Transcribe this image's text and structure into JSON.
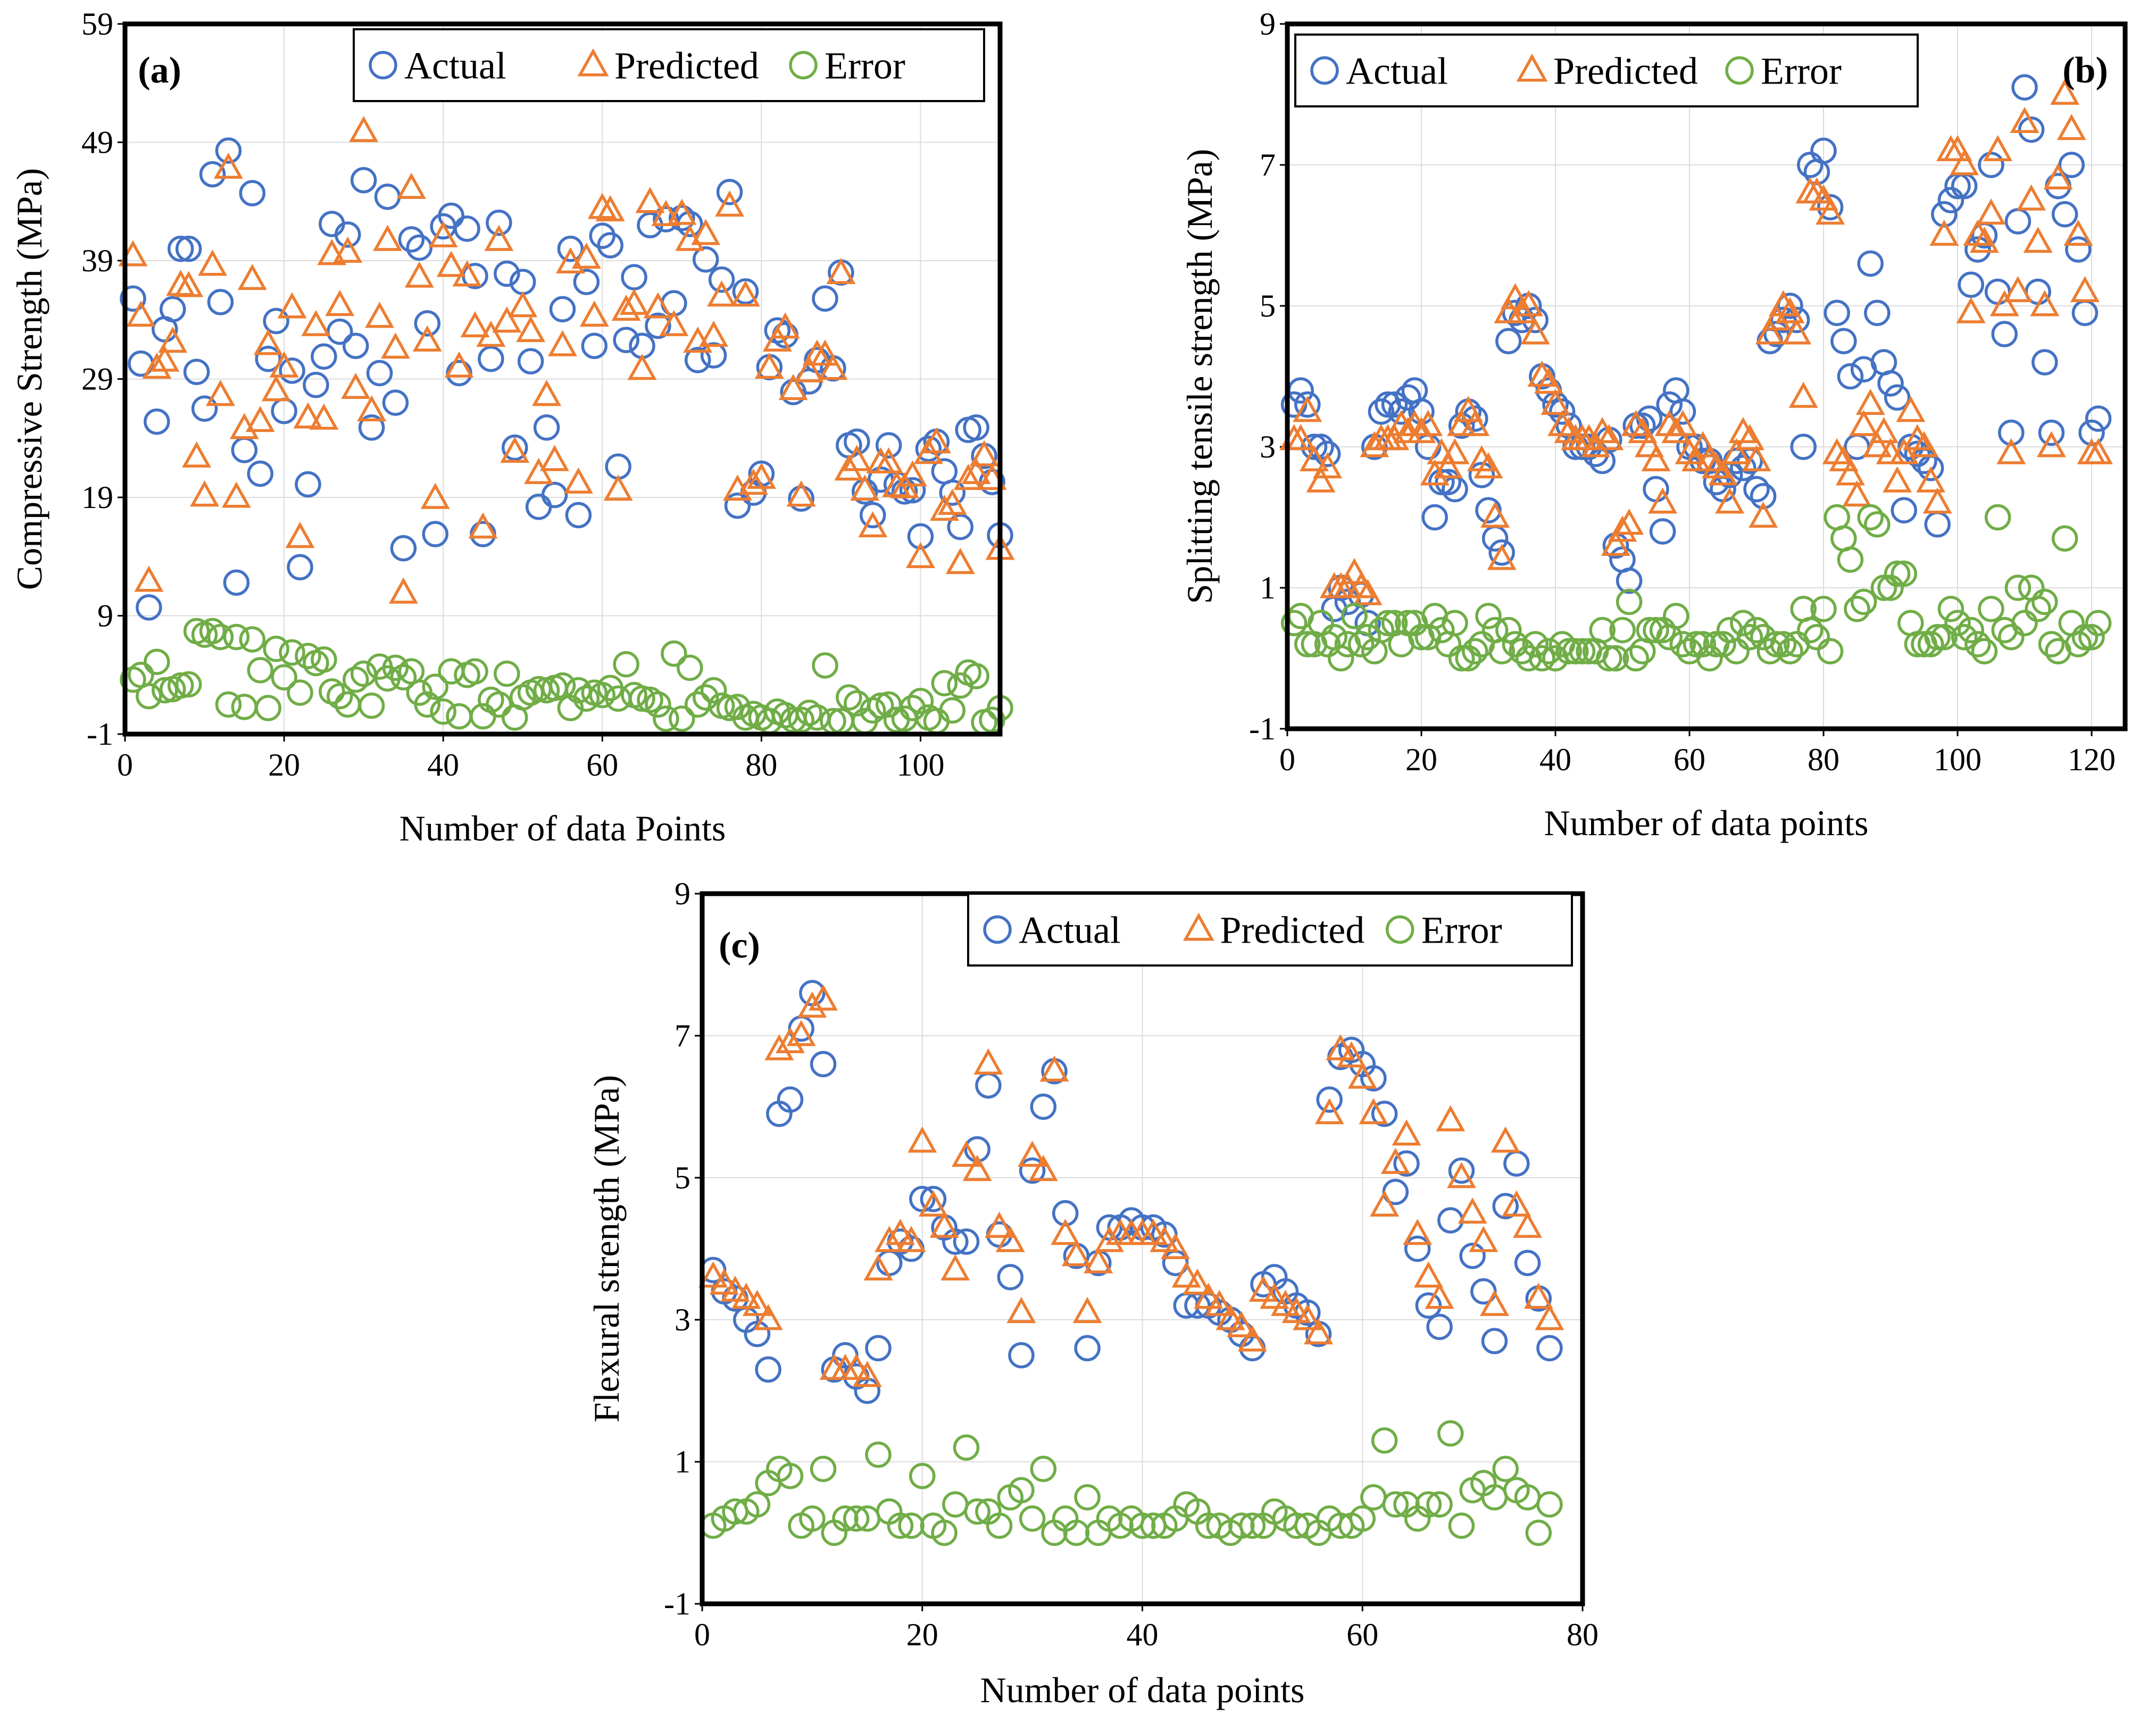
{
  "chart_data": [
    {
      "type": "scatter",
      "panel_label": "a",
      "xlabel": "Number of data Points",
      "ylabel": "Compressive Strength (MPa)",
      "xlim": [
        0,
        110
      ],
      "ylim": [
        -1,
        59
      ],
      "xticks": [
        0,
        20,
        40,
        60,
        80,
        100
      ],
      "yticks": [
        -1,
        9,
        19,
        29,
        39,
        49,
        59
      ],
      "grid": true,
      "legend_position": "top-right",
      "colors": {
        "Actual": "#4472C4",
        "Predicted": "#ED7D31",
        "Error": "#70AD47"
      },
      "series": [
        {
          "name": "Actual",
          "marker": "circle",
          "values": [
            35.8,
            30.3,
            9.7,
            25.4,
            33.2,
            34.9,
            40.0,
            40.0,
            29.6,
            26.5,
            46.3,
            35.5,
            48.3,
            11.8,
            23.0,
            44.7,
            21.0,
            30.7,
            33.9,
            26.3,
            29.7,
            13.1,
            20.1,
            28.5,
            30.9,
            42.1,
            33.0,
            41.2,
            31.8,
            45.8,
            24.9,
            29.5,
            44.4,
            27.0,
            14.7,
            40.8,
            40.1,
            33.7,
            15.9,
            41.9,
            42.8,
            29.5,
            41.7,
            37.7,
            15.9,
            30.7,
            42.2,
            37.9,
            23.2,
            37.2,
            30.5,
            18.2,
            24.9,
            19.2,
            34.9,
            40.0,
            17.5,
            37.2,
            31.8,
            41.1,
            40.3,
            21.6,
            32.3,
            37.6,
            31.8,
            42.0,
            33.5,
            42.5,
            35.4,
            42.6,
            42.1,
            30.6,
            39.1,
            31.0,
            37.4,
            44.8,
            18.3,
            36.4,
            19.4,
            21.0,
            30.0,
            33.1,
            32.7,
            27.9,
            18.9,
            28.8,
            30.6,
            35.8,
            29.9,
            38.0,
            23.4,
            23.7,
            19.5,
            17.5,
            20.5,
            23.4,
            20.1,
            19.5,
            19.6,
            15.7,
            23.1,
            23.7,
            21.2,
            19.4,
            16.5,
            24.7,
            24.9,
            22.5,
            20.3,
            15.8
          ]
        },
        {
          "name": "Predicted",
          "marker": "triangle",
          "values": [
            39.4,
            34.3,
            11.9,
            29.9,
            30.5,
            32.1,
            36.9,
            36.8,
            22.4,
            19.1,
            38.6,
            27.6,
            46.8,
            19.0,
            24.8,
            37.4,
            25.4,
            31.9,
            28.0,
            30.0,
            35.0,
            15.6,
            25.7,
            33.5,
            25.6,
            39.5,
            35.2,
            39.7,
            28.2,
            49.9,
            26.3,
            34.2,
            40.7,
            31.6,
            10.9,
            45.1,
            37.6,
            32.2,
            18.9,
            41.0,
            38.5,
            30.0,
            37.7,
            33.4,
            16.4,
            32.6,
            40.7,
            33.8,
            22.8,
            35.1,
            33.0,
            21.0,
            27.6,
            22.1,
            31.8,
            38.8,
            20.2,
            39.2,
            34.3,
            43.4,
            43.2,
            19.6,
            34.8,
            35.3,
            29.8,
            43.9,
            35.0,
            42.8,
            33.5,
            42.9,
            40.7,
            32.1,
            41.2,
            32.6,
            36.0,
            43.6,
            19.6,
            36.0,
            20.1,
            20.6,
            29.9,
            32.2,
            33.3,
            28.1,
            19.1,
            29.6,
            31.0,
            31.0,
            29.8,
            37.9,
            21.3,
            22.1,
            19.6,
            16.5,
            21.9,
            21.9,
            19.9,
            19.8,
            20.8,
            13.9,
            22.7,
            23.6,
            17.9,
            18.4,
            13.4,
            20.5,
            21.0,
            22.5,
            20.5,
            14.6
          ]
        },
        {
          "name": "Error",
          "marker": "circle",
          "values": [
            3.6,
            4.0,
            2.2,
            5.1,
            2.7,
            2.8,
            3.1,
            3.2,
            7.7,
            7.4,
            7.7,
            7.2,
            1.5,
            7.2,
            1.3,
            7.0,
            4.4,
            1.2,
            6.2,
            3.8,
            5.9,
            2.5,
            5.6,
            5.0,
            5.3,
            2.6,
            2.2,
            1.5,
            3.6,
            4.1,
            1.4,
            4.7,
            3.7,
            4.6,
            3.8,
            4.3,
            2.5,
            1.5,
            3.0,
            0.9,
            4.3,
            0.5,
            4.0,
            4.3,
            0.5,
            1.9,
            1.5,
            4.1,
            0.4,
            2.1,
            2.5,
            2.8,
            2.7,
            2.9,
            3.1,
            1.2,
            2.7,
            2.0,
            2.5,
            2.3,
            2.9,
            2.0,
            4.9,
            2.3,
            2.0,
            1.9,
            1.5,
            0.3,
            5.8,
            0.3,
            4.6,
            1.5,
            2.1,
            2.7,
            1.4,
            1.2,
            1.3,
            0.4,
            0.7,
            0.4,
            0.1,
            0.9,
            0.6,
            0.2,
            0.2,
            0.8,
            0.4,
            4.8,
            0.1,
            0.1,
            2.1,
            1.6,
            0.1,
            1.0,
            1.4,
            1.5,
            0.2,
            0.3,
            1.2,
            1.8,
            0.4,
            0.1,
            3.3,
            1.0,
            3.1,
            4.2,
            3.9,
            0.0,
            0.2,
            1.2
          ]
        }
      ],
      "legend": [
        "Actual",
        "Predicted",
        "Error"
      ]
    },
    {
      "type": "scatter",
      "panel_label": "b",
      "xlabel": "Number of data points",
      "ylabel": "Splitting tensile strength (MPa)",
      "xlim": [
        0,
        125
      ],
      "ylim": [
        -1,
        9
      ],
      "xticks": [
        0,
        20,
        40,
        60,
        80,
        100,
        120
      ],
      "yticks": [
        -1,
        1,
        3,
        5,
        7,
        9
      ],
      "grid": true,
      "legend_position": "top-left",
      "colors": {
        "Actual": "#4472C4",
        "Predicted": "#ED7D31",
        "Error": "#70AD47"
      },
      "series": [
        {
          "name": "Actual",
          "marker": "circle",
          "values": [
            3.6,
            3.8,
            3.6,
            3.0,
            3.0,
            2.9,
            0.7,
            1.0,
            0.8,
            0.6,
            0.9,
            0.5,
            3.0,
            3.5,
            3.6,
            3.6,
            3.5,
            3.7,
            3.8,
            3.5,
            3.0,
            2.0,
            2.5,
            2.5,
            2.4,
            3.3,
            3.5,
            3.4,
            2.6,
            2.1,
            1.7,
            1.5,
            4.5,
            4.9,
            4.8,
            5.0,
            4.8,
            4.0,
            3.8,
            3.6,
            3.5,
            3.3,
            3.0,
            3.0,
            3.0,
            2.9,
            2.8,
            3.1,
            1.6,
            1.4,
            1.1,
            3.3,
            3.3,
            3.4,
            2.4,
            1.8,
            3.6,
            3.8,
            3.5,
            3.0,
            3.0,
            2.8,
            2.8,
            2.5,
            2.4,
            2.6,
            2.8,
            2.7,
            2.8,
            2.4,
            2.3,
            4.5,
            4.6,
            4.8,
            5.0,
            4.8,
            3.0,
            7.0,
            6.9,
            7.2,
            6.4,
            4.9,
            4.5,
            4.0,
            3.0,
            4.1,
            5.6,
            4.9,
            4.2,
            3.9,
            3.7,
            2.1,
            3.0,
            2.9,
            2.8,
            2.7,
            1.9,
            6.3,
            6.5,
            6.7,
            6.7,
            5.3,
            5.8,
            6.0,
            7.0,
            5.2,
            4.6,
            3.2,
            6.2,
            8.1,
            7.5,
            5.2,
            4.2,
            3.2,
            6.7,
            6.3,
            7.0,
            5.8,
            4.9,
            3.2,
            3.4
          ]
        },
        {
          "name": "Predicted",
          "marker": "triangle",
          "values": [
            3.1,
            3.1,
            3.5,
            2.8,
            2.5,
            2.7,
            1.0,
            1.0,
            1.0,
            1.2,
            1.0,
            0.9,
            3.0,
            3.1,
            3.1,
            3.1,
            3.3,
            3.2,
            3.3,
            3.2,
            3.3,
            2.6,
            2.9,
            2.7,
            2.9,
            3.3,
            3.5,
            3.3,
            2.8,
            2.7,
            2.0,
            1.4,
            4.9,
            5.1,
            4.9,
            5.0,
            4.6,
            4.0,
            3.9,
            3.6,
            3.3,
            3.2,
            3.1,
            3.1,
            3.1,
            3.0,
            3.2,
            3.1,
            1.6,
            1.8,
            1.9,
            3.3,
            3.2,
            3.0,
            2.8,
            2.2,
            3.3,
            3.2,
            3.3,
            2.9,
            2.8,
            3.0,
            2.8,
            2.7,
            2.6,
            2.2,
            2.9,
            3.2,
            3.1,
            2.8,
            2.0,
            4.6,
            4.8,
            5.0,
            4.9,
            4.6,
            3.7,
            6.6,
            6.6,
            6.5,
            6.3,
            2.9,
            2.8,
            2.6,
            2.3,
            3.3,
            3.6,
            3.0,
            3.2,
            2.9,
            2.5,
            2.9,
            3.5,
            3.1,
            3.0,
            2.5,
            2.2,
            6.0,
            7.2,
            7.2,
            7.0,
            4.9,
            6.0,
            5.9,
            6.3,
            7.2,
            5.0,
            2.9,
            5.2,
            7.6,
            6.5,
            5.9,
            5.0,
            3.0,
            6.8,
            8.0,
            7.5,
            6.0,
            5.2,
            2.9,
            2.9
          ]
        },
        {
          "name": "Error",
          "marker": "circle",
          "values": [
            0.5,
            0.6,
            0.2,
            0.2,
            0.5,
            0.2,
            0.3,
            0.0,
            0.2,
            0.6,
            0.2,
            0.3,
            0.1,
            0.4,
            0.5,
            0.5,
            0.2,
            0.5,
            0.5,
            0.3,
            0.3,
            0.6,
            0.4,
            0.2,
            0.5,
            0.0,
            0.0,
            0.1,
            0.2,
            0.6,
            0.4,
            0.1,
            0.4,
            0.2,
            0.1,
            0.0,
            0.2,
            0.0,
            0.1,
            0.0,
            0.2,
            0.1,
            0.1,
            0.1,
            0.1,
            0.1,
            0.4,
            0.0,
            0.0,
            0.4,
            0.8,
            0.0,
            0.1,
            0.4,
            0.4,
            0.4,
            0.3,
            0.6,
            0.2,
            0.1,
            0.2,
            0.2,
            0.0,
            0.2,
            0.2,
            0.4,
            0.1,
            0.5,
            0.3,
            0.4,
            0.3,
            0.1,
            0.2,
            0.2,
            0.1,
            0.2,
            0.7,
            0.4,
            0.3,
            0.7,
            0.1,
            2.0,
            1.7,
            1.4,
            0.7,
            0.8,
            2.0,
            1.9,
            1.0,
            1.0,
            1.2,
            1.2,
            0.5,
            0.2,
            0.2,
            0.2,
            0.3,
            0.3,
            0.7,
            0.5,
            0.3,
            0.4,
            0.2,
            0.1,
            0.7,
            2.0,
            0.4,
            0.3,
            1.0,
            0.5,
            1.0,
            0.7,
            0.8,
            0.2,
            0.1,
            1.7,
            0.5,
            0.2,
            0.3,
            0.3,
            0.5
          ]
        }
      ],
      "legend": [
        "Actual",
        "Predicted",
        "Error"
      ]
    },
    {
      "type": "scatter",
      "panel_label": "c",
      "xlabel": "Number of data points",
      "ylabel": "Flexural strength (MPa)",
      "xlim": [
        0,
        80
      ],
      "ylim": [
        -1,
        9
      ],
      "xticks": [
        0,
        20,
        40,
        60,
        80
      ],
      "yticks": [
        -1,
        1,
        3,
        5,
        7,
        9
      ],
      "grid": true,
      "legend_position": "top-right",
      "colors": {
        "Actual": "#4472C4",
        "Predicted": "#ED7D31",
        "Error": "#70AD47"
      },
      "series": [
        {
          "name": "Actual",
          "marker": "circle",
          "values": [
            3.7,
            3.4,
            3.3,
            3.0,
            2.8,
            2.3,
            5.9,
            6.1,
            7.1,
            7.6,
            6.6,
            2.3,
            2.5,
            2.2,
            2.0,
            2.6,
            3.8,
            4.1,
            4.0,
            4.7,
            4.7,
            4.3,
            4.1,
            4.1,
            5.4,
            6.3,
            4.2,
            3.6,
            2.5,
            5.1,
            6.0,
            6.5,
            4.5,
            3.9,
            2.6,
            3.8,
            4.3,
            4.3,
            4.4,
            4.3,
            4.3,
            4.2,
            3.8,
            3.2,
            3.2,
            3.2,
            3.1,
            3.0,
            2.8,
            2.6,
            3.5,
            3.6,
            3.4,
            3.2,
            3.1,
            2.8,
            6.1,
            6.7,
            6.8,
            6.6,
            6.4,
            5.9,
            4.8,
            5.2,
            4.0,
            3.2,
            2.9,
            4.4,
            5.1,
            3.9,
            3.4,
            2.7,
            4.6,
            5.2,
            3.8,
            3.3,
            2.6
          ]
        },
        {
          "name": "Predicted",
          "marker": "triangle",
          "values": [
            3.6,
            3.5,
            3.4,
            3.3,
            3.2,
            3.0,
            6.8,
            6.9,
            7.0,
            7.4,
            7.5,
            2.3,
            2.3,
            2.3,
            2.2,
            3.7,
            4.1,
            4.2,
            4.1,
            5.5,
            4.6,
            4.3,
            3.7,
            5.3,
            5.1,
            6.6,
            4.3,
            4.1,
            3.1,
            5.3,
            5.1,
            6.5,
            4.2,
            3.9,
            3.1,
            3.8,
            4.1,
            4.2,
            4.2,
            4.2,
            4.2,
            4.1,
            4.0,
            3.6,
            3.5,
            3.3,
            3.2,
            3.0,
            2.9,
            2.7,
            3.4,
            3.3,
            3.2,
            3.1,
            3.0,
            2.8,
            5.9,
            6.8,
            6.7,
            6.4,
            5.9,
            4.6,
            5.2,
            5.6,
            4.2,
            3.6,
            3.3,
            5.8,
            5.0,
            4.5,
            4.1,
            3.2,
            5.5,
            4.6,
            4.3,
            3.3,
            3.0
          ]
        },
        {
          "name": "Error",
          "marker": "circle",
          "values": [
            0.1,
            0.2,
            0.3,
            0.3,
            0.4,
            0.7,
            0.9,
            0.8,
            0.1,
            0.2,
            0.9,
            0.0,
            0.2,
            0.2,
            0.2,
            1.1,
            0.3,
            0.1,
            0.1,
            0.8,
            0.1,
            0.0,
            0.4,
            1.2,
            0.3,
            0.3,
            0.1,
            0.5,
            0.6,
            0.2,
            0.9,
            0.0,
            0.2,
            0.0,
            0.5,
            0.0,
            0.2,
            0.1,
            0.2,
            0.1,
            0.1,
            0.1,
            0.2,
            0.4,
            0.3,
            0.1,
            0.1,
            0.0,
            0.1,
            0.1,
            0.1,
            0.3,
            0.2,
            0.1,
            0.1,
            0.0,
            0.2,
            0.1,
            0.1,
            0.2,
            0.5,
            1.3,
            0.4,
            0.4,
            0.2,
            0.4,
            0.4,
            1.4,
            0.1,
            0.6,
            0.7,
            0.5,
            0.9,
            0.6,
            0.5,
            0.0,
            0.4
          ]
        }
      ],
      "legend": [
        "Actual",
        "Predicted",
        "Error"
      ]
    }
  ]
}
